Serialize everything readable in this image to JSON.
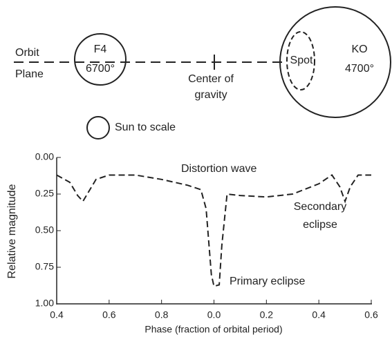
{
  "diagram": {
    "orbit": "Orbit",
    "plane": "Plane",
    "f4": "F4",
    "f4_temp": "6700°",
    "center_1": "Center of",
    "center_2": "gravity",
    "spot": "Spot",
    "ko": "KO",
    "ko_temp": "4700°",
    "sun": "Sun to scale"
  },
  "chart_data": {
    "type": "line",
    "ylabel": "Relative magnitude",
    "xlabel": "Phase (fraction of orbital period)",
    "annotations": [
      "Distortion wave",
      "Primary eclipse",
      "Secondary",
      "eclipse"
    ],
    "xlim": [
      0.4,
      1.6
    ],
    "ylim": [
      0,
      1
    ],
    "y_inverted": true,
    "xticks": [
      {
        "value": 0.4,
        "label": "0.4"
      },
      {
        "value": 0.6,
        "label": "0.6"
      },
      {
        "value": 0.8,
        "label": "0.8"
      },
      {
        "value": 1.0,
        "label": "0.0"
      },
      {
        "value": 1.2,
        "label": "0.2"
      },
      {
        "value": 1.4,
        "label": "0.4"
      },
      {
        "value": 1.6,
        "label": "0.6"
      }
    ],
    "yticks": [
      {
        "value": 0,
        "label": "0.00"
      },
      {
        "value": 0.25,
        "label": "0.25"
      },
      {
        "value": 0.5,
        "label": "0.50"
      },
      {
        "value": 0.75,
        "label": "0.75"
      },
      {
        "value": 1,
        "label": "1.00"
      }
    ],
    "x": [
      0.4,
      0.45,
      0.48,
      0.5,
      0.52,
      0.55,
      0.6,
      0.7,
      0.8,
      0.9,
      0.95,
      0.97,
      0.99,
      1.0,
      1.02,
      1.03,
      1.05,
      1.1,
      1.2,
      1.3,
      1.4,
      1.45,
      1.48,
      1.5,
      1.52,
      1.55,
      1.6
    ],
    "values": [
      0.12,
      0.17,
      0.26,
      0.3,
      0.24,
      0.15,
      0.12,
      0.12,
      0.15,
      0.19,
      0.22,
      0.35,
      0.8,
      0.88,
      0.87,
      0.6,
      0.25,
      0.26,
      0.27,
      0.25,
      0.18,
      0.12,
      0.2,
      0.3,
      0.2,
      0.12,
      0.12
    ],
    "color": "#222"
  }
}
